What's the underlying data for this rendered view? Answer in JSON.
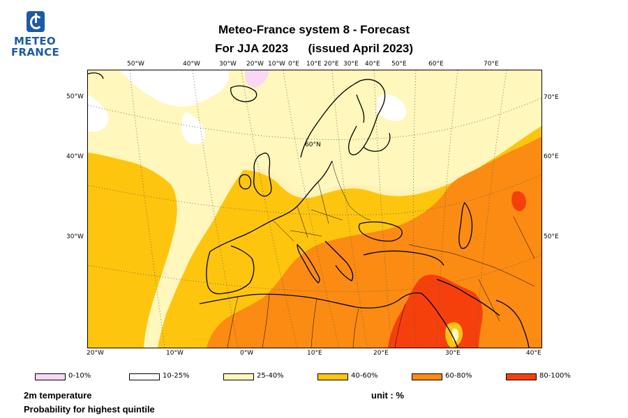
{
  "logo": {
    "line1": "METEO",
    "line2": "FRANCE"
  },
  "title": {
    "line1": "Meteo-France system 8  -  Forecast",
    "line2": "For JJA 2023      (issued April 2023)"
  },
  "map": {
    "grid_label": "60°N",
    "top_lon_labels": [
      "50°W",
      "40°W",
      "30°W",
      "20°W",
      "10°W",
      "0°E",
      "10°E",
      "20°E",
      "30°E",
      "40°E",
      "50°E",
      "60°E",
      "70°E"
    ],
    "bottom_lon_labels": [
      "20°W",
      "10°W",
      "0°W",
      "10°E",
      "20°E",
      "30°E",
      "40°E"
    ],
    "left_labels": [
      "50°W",
      "40°W",
      "30°W"
    ],
    "right_labels": [
      "70°E",
      "60°E",
      "50°E"
    ],
    "colors": {
      "p0_10": "#f9d8f3",
      "p10_25": "#ffffff",
      "p25_40": "#fff7bc",
      "p40_60": "#fec50f",
      "p60_80": "#fb8b12",
      "p80_100": "#f5400c"
    }
  },
  "legend": [
    {
      "label": "0-10%",
      "color": "#f9d8f3"
    },
    {
      "label": "10-25%",
      "color": "#ffffff"
    },
    {
      "label": "25-40%",
      "color": "#fff7bc"
    },
    {
      "label": "40-60%",
      "color": "#fec50f"
    },
    {
      "label": "60-80%",
      "color": "#fb8b12"
    },
    {
      "label": "80-100%",
      "color": "#f5400c"
    }
  ],
  "footer": {
    "variable": "2m temperature",
    "description": "Probability for highest quintile",
    "unit": "unit : %"
  }
}
